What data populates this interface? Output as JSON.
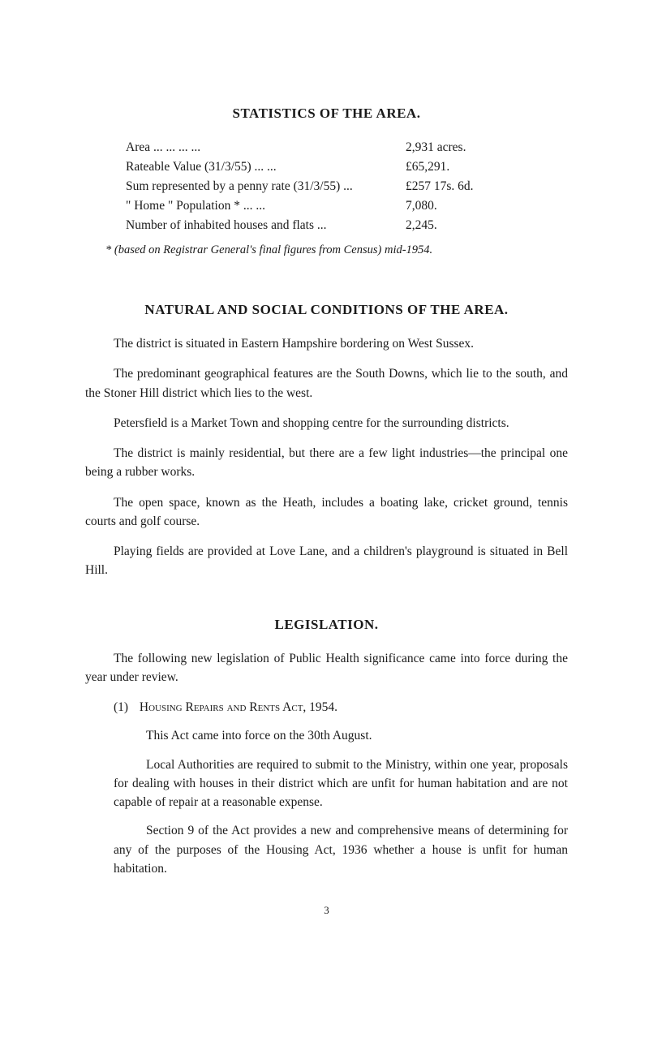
{
  "statistics": {
    "title": "STATISTICS OF THE AREA.",
    "rows": [
      {
        "label": "Area   ...              ...              ...              ...",
        "value": "2,931 acres."
      },
      {
        "label": "Rateable Value (31/3/55)           ...              ...",
        "value": "£65,291."
      },
      {
        "label": "Sum represented by a penny rate (31/3/55) ...",
        "value": "£257   17s.   6d."
      },
      {
        "label": "\" Home \" Population *            ...              ...",
        "value": "7,080."
      },
      {
        "label": "Number of inhabited houses and flats       ...",
        "value": "2,245."
      }
    ],
    "footnote": "* (based on Registrar General's final figures from Census) mid-1954."
  },
  "conditions": {
    "title": "NATURAL AND SOCIAL CONDITIONS OF THE AREA.",
    "paragraphs": [
      "The district is situated in Eastern Hampshire bordering on West Sussex.",
      "The predominant geographical features are the South Downs, which lie to the south, and the Stoner Hill district which lies to the west.",
      "Petersfield is a Market Town and shopping centre for the surrounding districts.",
      "The district is mainly residential, but there are a few light industries—the principal one being a rubber works.",
      "The open space, known as the Heath, includes a boating lake, cricket ground, tennis courts and golf course.",
      "Playing fields are provided at Love Lane, and a children's playground is situated in Bell Hill."
    ]
  },
  "legislation": {
    "title": "LEGISLATION.",
    "intro": "The following new legislation of Public Health significance came into force during the year under review.",
    "item_number": "(1)",
    "item_title": "Housing Repairs and Rents Act, 1954.",
    "sub_paragraphs": [
      "This Act came into force on the 30th August.",
      "Local Authorities are required to submit to the Ministry, within one year, proposals for dealing with houses in their district which are unfit for human habitation and are not capable of repair at a reasonable expense.",
      "Section 9 of the Act provides a new and comprehensive means of determining for any of the purposes of the Housing Act, 1936 whether a house is unfit for human habitation."
    ]
  },
  "page_number": "3"
}
